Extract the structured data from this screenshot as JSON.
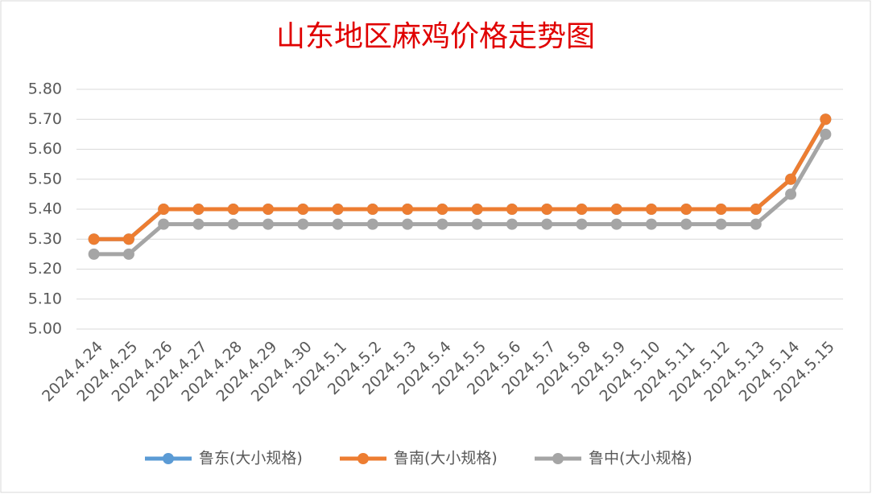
{
  "chart_data": {
    "type": "line",
    "title": "山东地区麻鸡价格走势图",
    "categories": [
      "2024.4.24",
      "2024.4.25",
      "2024.4.26",
      "2024.4.27",
      "2024.4.28",
      "2024.4.29",
      "2024.4.30",
      "2024.5.1",
      "2024.5.2",
      "2024.5.3",
      "2024.5.4",
      "2024.5.5",
      "2024.5.6",
      "2024.5.7",
      "2024.5.8",
      "2024.5.9",
      "2024.5.10",
      "2024.5.11",
      "2024.5.12",
      "2024.5.13",
      "2024.5.14",
      "2024.5.15"
    ],
    "series": [
      {
        "name": "鲁东(大小规格)",
        "color": "#5b9bd5",
        "values": [
          5.3,
          5.3,
          5.4,
          5.4,
          5.4,
          5.4,
          5.4,
          5.4,
          5.4,
          5.4,
          5.4,
          5.4,
          5.4,
          5.4,
          5.4,
          5.4,
          5.4,
          5.4,
          5.4,
          5.4,
          5.5,
          5.7
        ]
      },
      {
        "name": "鲁南(大小规格)",
        "color": "#ed7d31",
        "values": [
          5.3,
          5.3,
          5.4,
          5.4,
          5.4,
          5.4,
          5.4,
          5.4,
          5.4,
          5.4,
          5.4,
          5.4,
          5.4,
          5.4,
          5.4,
          5.4,
          5.4,
          5.4,
          5.4,
          5.4,
          5.5,
          5.7
        ]
      },
      {
        "name": "鲁中(大小规格)",
        "color": "#a5a5a5",
        "values": [
          5.25,
          5.25,
          5.35,
          5.35,
          5.35,
          5.35,
          5.35,
          5.35,
          5.35,
          5.35,
          5.35,
          5.35,
          5.35,
          5.35,
          5.35,
          5.35,
          5.35,
          5.35,
          5.35,
          5.35,
          5.45,
          5.65
        ]
      }
    ],
    "ylim": [
      5.0,
      5.8
    ],
    "yticks": [
      {
        "value": 5.0,
        "label": "5.00"
      },
      {
        "value": 5.1,
        "label": "5.10"
      },
      {
        "value": 5.2,
        "label": "5.20"
      },
      {
        "value": 5.3,
        "label": "5.30"
      },
      {
        "value": 5.4,
        "label": "5.40"
      },
      {
        "value": 5.5,
        "label": "5.50"
      },
      {
        "value": 5.6,
        "label": "5.60"
      },
      {
        "value": 5.7,
        "label": "5.70"
      },
      {
        "value": 5.8,
        "label": "5.80"
      }
    ],
    "grid": true,
    "legend": "bottom"
  }
}
